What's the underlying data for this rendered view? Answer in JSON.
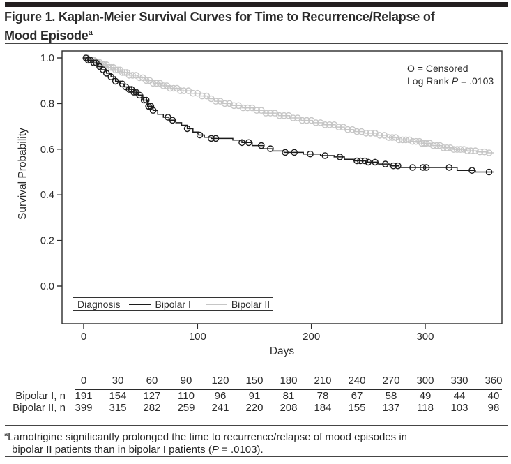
{
  "figure": {
    "title_line1": "Figure 1. Kaplan-Meier Survival Curves for Time to Recurrence/Relapse of",
    "title_line2": "Mood Episode",
    "title_superscript": "a"
  },
  "chart_data": {
    "type": "line",
    "subtype": "kaplan-meier-step",
    "title": "Kaplan-Meier Survival Curves for Time to Recurrence/Relapse of Mood Episode",
    "xlabel": "Days",
    "ylabel": "Survival Probability",
    "x_ticks": [
      0,
      100,
      200,
      300
    ],
    "y_ticks": [
      1.0,
      0.8,
      0.6,
      0.4,
      0.2,
      0.0
    ],
    "xlim": [
      0,
      368
    ],
    "ylim": [
      0,
      1
    ],
    "grid": false,
    "legend": {
      "title": "Diagnosis",
      "position": "inside-bottom-left"
    },
    "annotation": {
      "censored": "O = Censored",
      "logrank_prefix": "Log Rank ",
      "logrank_p": "P",
      "logrank_value": " = .0103"
    },
    "series": [
      {
        "name": "Bipolar I",
        "color": "#1c1c1c",
        "steps": [
          [
            0,
            1.0
          ],
          [
            4,
            0.99
          ],
          [
            8,
            0.978
          ],
          [
            12,
            0.962
          ],
          [
            16,
            0.948
          ],
          [
            20,
            0.933
          ],
          [
            24,
            0.917
          ],
          [
            28,
            0.898
          ],
          [
            32,
            0.886
          ],
          [
            36,
            0.873
          ],
          [
            40,
            0.862
          ],
          [
            44,
            0.85
          ],
          [
            48,
            0.837
          ],
          [
            52,
            0.815
          ],
          [
            56,
            0.788
          ],
          [
            61,
            0.77
          ],
          [
            65,
            0.753
          ],
          [
            70,
            0.74
          ],
          [
            75,
            0.727
          ],
          [
            81,
            0.716
          ],
          [
            86,
            0.705
          ],
          [
            91,
            0.69
          ],
          [
            96,
            0.675
          ],
          [
            101,
            0.662
          ],
          [
            106,
            0.652
          ],
          [
            112,
            0.647
          ],
          [
            131,
            0.64
          ],
          [
            139,
            0.629
          ],
          [
            148,
            0.616
          ],
          [
            158,
            0.602
          ],
          [
            166,
            0.592
          ],
          [
            176,
            0.586
          ],
          [
            193,
            0.579
          ],
          [
            208,
            0.572
          ],
          [
            220,
            0.566
          ],
          [
            229,
            0.556
          ],
          [
            237,
            0.549
          ],
          [
            248,
            0.543
          ],
          [
            259,
            0.535
          ],
          [
            269,
            0.527
          ],
          [
            277,
            0.52
          ],
          [
            328,
            0.507
          ],
          [
            344,
            0.5
          ],
          [
            360,
            0.5
          ]
        ],
        "censor_days": [
          2,
          4,
          6,
          9,
          11,
          14,
          17,
          20,
          24,
          28,
          34,
          37,
          40,
          42,
          44,
          46,
          49,
          53,
          55,
          57,
          59,
          61,
          74,
          78,
          91,
          102,
          112,
          116,
          139,
          145,
          156,
          164,
          177,
          185,
          199,
          212,
          225,
          240,
          243,
          247,
          250,
          256,
          265,
          272,
          276,
          289,
          298,
          301,
          321,
          341,
          356
        ]
      },
      {
        "name": "Bipolar II",
        "color": "#c6c6c6",
        "steps": [
          [
            0,
            1.0
          ],
          [
            5,
            0.99
          ],
          [
            10,
            0.98
          ],
          [
            15,
            0.97
          ],
          [
            21,
            0.958
          ],
          [
            27,
            0.947
          ],
          [
            33,
            0.936
          ],
          [
            40,
            0.924
          ],
          [
            47,
            0.913
          ],
          [
            54,
            0.901
          ],
          [
            61,
            0.889
          ],
          [
            68,
            0.878
          ],
          [
            76,
            0.867
          ],
          [
            85,
            0.856
          ],
          [
            94,
            0.845
          ],
          [
            102,
            0.833
          ],
          [
            109,
            0.821
          ],
          [
            115,
            0.81
          ],
          [
            121,
            0.8
          ],
          [
            129,
            0.791
          ],
          [
            139,
            0.781
          ],
          [
            149,
            0.77
          ],
          [
            159,
            0.758
          ],
          [
            171,
            0.747
          ],
          [
            181,
            0.737
          ],
          [
            191,
            0.726
          ],
          [
            201,
            0.716
          ],
          [
            211,
            0.707
          ],
          [
            221,
            0.697
          ],
          [
            229,
            0.686
          ],
          [
            237,
            0.677
          ],
          [
            247,
            0.67
          ],
          [
            257,
            0.661
          ],
          [
            267,
            0.651
          ],
          [
            277,
            0.641
          ],
          [
            287,
            0.634
          ],
          [
            297,
            0.626
          ],
          [
            305,
            0.616
          ],
          [
            315,
            0.606
          ],
          [
            325,
            0.599
          ],
          [
            335,
            0.593
          ],
          [
            345,
            0.588
          ],
          [
            355,
            0.584
          ],
          [
            360,
            0.583
          ]
        ],
        "censor_days": [
          2,
          3,
          5,
          6,
          8,
          9,
          11,
          12,
          14,
          15,
          17,
          18,
          20,
          22,
          24,
          26,
          28,
          30,
          32,
          34,
          36,
          38,
          40,
          43,
          46,
          49,
          52,
          55,
          58,
          61,
          64,
          67,
          70,
          73,
          76,
          79,
          82,
          85,
          88,
          92,
          96,
          100,
          104,
          108,
          112,
          116,
          120,
          124,
          128,
          132,
          136,
          140,
          144,
          148,
          152,
          156,
          160,
          164,
          168,
          172,
          176,
          180,
          184,
          188,
          192,
          196,
          200,
          204,
          208,
          212,
          216,
          220,
          224,
          228,
          232,
          236,
          240,
          244,
          248,
          252,
          256,
          260,
          264,
          268,
          271,
          274,
          277,
          280,
          283,
          286,
          289,
          292,
          295,
          297,
          299,
          301,
          304,
          307,
          310,
          313,
          316,
          319,
          322,
          325,
          328,
          331,
          334,
          337,
          340,
          344,
          348,
          352,
          356
        ]
      }
    ],
    "risk_table": {
      "days": [
        0,
        30,
        60,
        90,
        120,
        150,
        180,
        210,
        240,
        270,
        300,
        330,
        360
      ],
      "rows": [
        {
          "label": "Bipolar I, n",
          "values": [
            191,
            154,
            127,
            110,
            96,
            91,
            81,
            78,
            67,
            58,
            49,
            44,
            40
          ]
        },
        {
          "label": "Bipolar II, n",
          "values": [
            399,
            315,
            282,
            259,
            241,
            220,
            208,
            184,
            155,
            137,
            118,
            103,
            98
          ]
        }
      ]
    }
  },
  "footnote": {
    "superscript": "a",
    "line1": "Lamotrigine significantly prolonged the time to recurrence/relapse of mood episodes in",
    "line2_prefix": "bipolar II patients than in bipolar I patients (",
    "line2_p": "P",
    "line2_suffix": " = .0103)."
  },
  "colors": {
    "bipolar_i": "#1c1c1c",
    "bipolar_ii": "#c6c6c6",
    "text": "#2b2b2b",
    "rule": "#454545"
  }
}
